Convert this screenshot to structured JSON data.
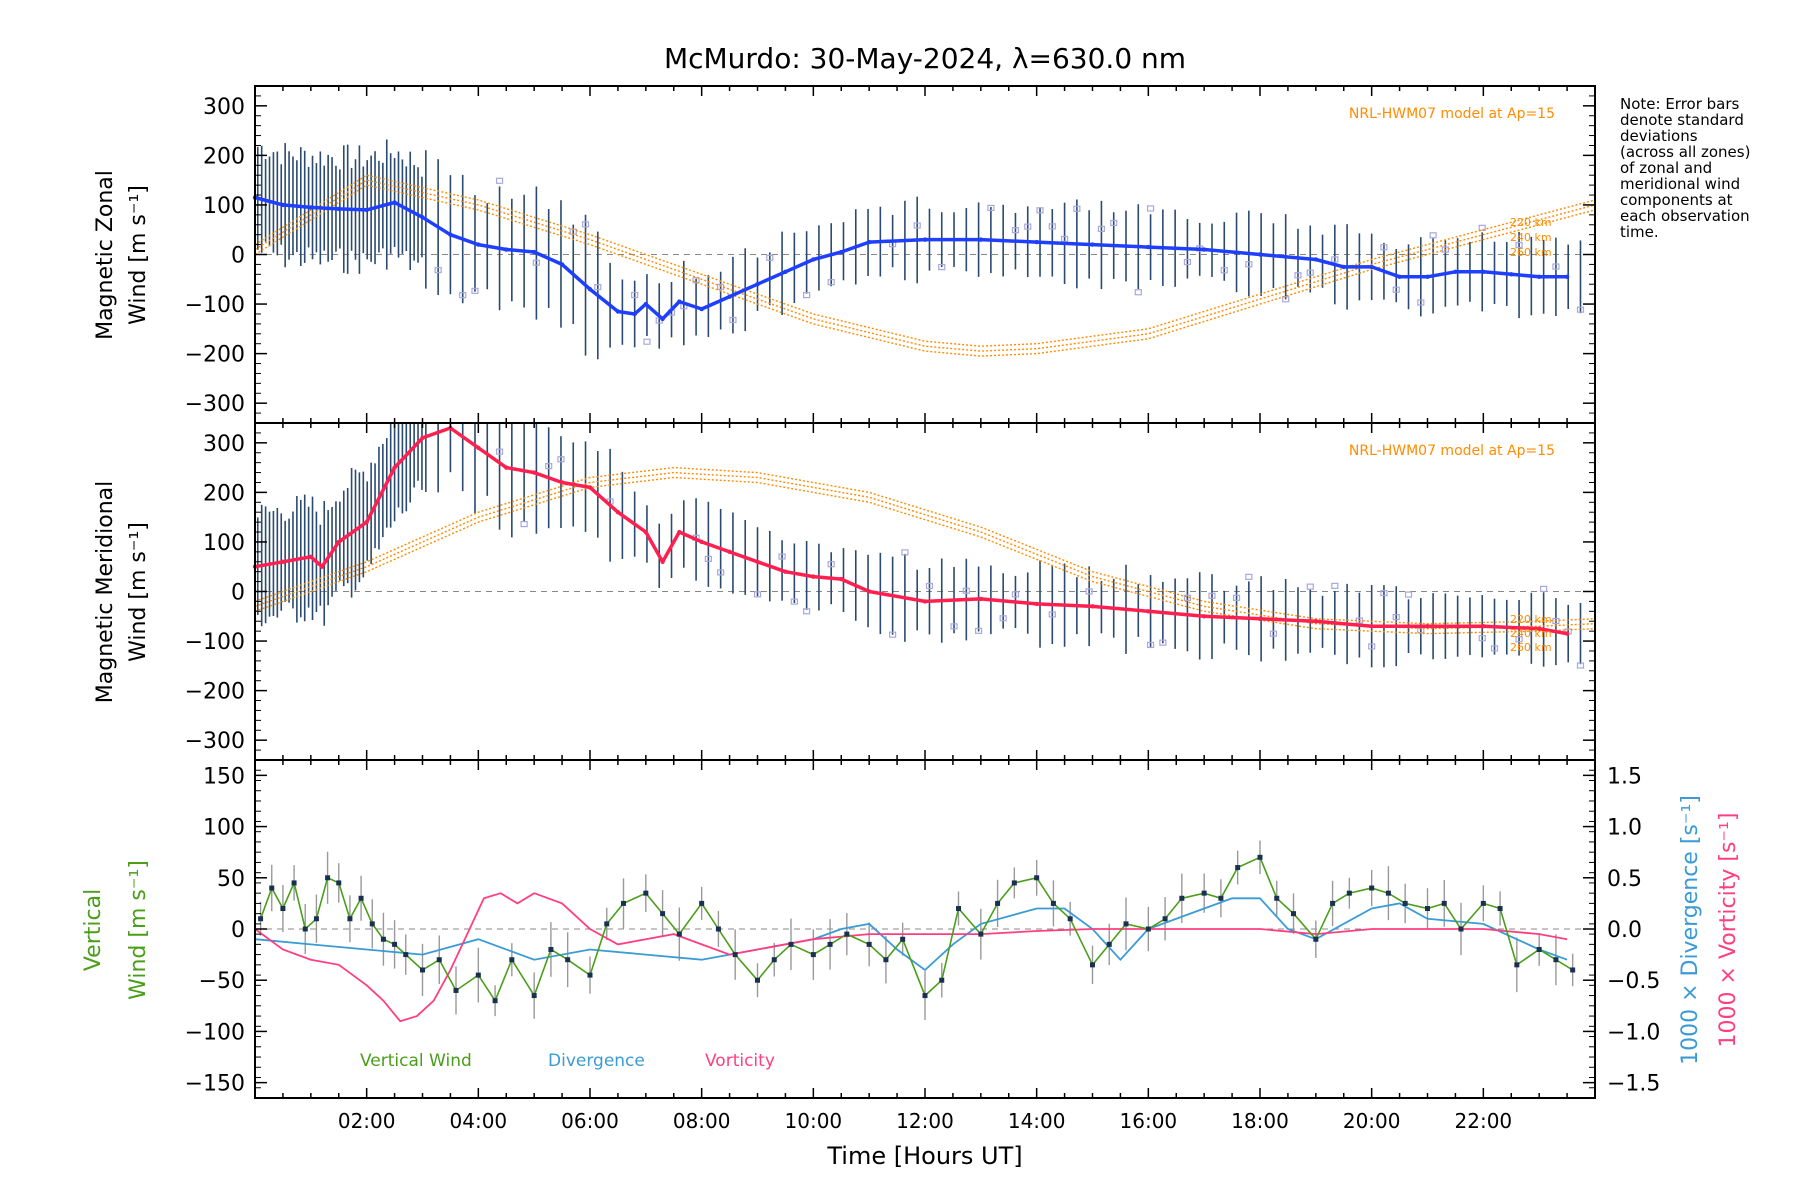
{
  "title": "McMurdo: 30-May-2024, λ=630.0 nm",
  "note_lines": [
    "Note: Error bars",
    "denote standard",
    "deviations",
    "(across all zones)",
    "of zonal and",
    "meridional wind",
    "components at",
    "each observation",
    "time."
  ],
  "xlabel": "Time [Hours UT]",
  "x_ticks": [
    "02:00",
    "04:00",
    "06:00",
    "08:00",
    "10:00",
    "12:00",
    "14:00",
    "16:00",
    "18:00",
    "20:00",
    "22:00"
  ],
  "colors": {
    "zonal": "#1f3fff",
    "meridional": "#ff2050",
    "model": "#ff8c00",
    "vertical": "#4a9e1a",
    "divergence": "#3a9bd5",
    "vorticity": "#ff3f80",
    "errorbar": "#2a4a70",
    "zone_marker": "#a8a8e0"
  },
  "chart_data": [
    {
      "type": "line",
      "panel": "zonal",
      "ylabel_line1": "Magnetic Zonal",
      "ylabel_line2": "Wind [m s⁻¹]",
      "model_label": "NRL-HWM07 model at Ap=15",
      "model_heights": [
        "220 km",
        "240 km",
        "260 km"
      ],
      "y_ticks": [
        "300",
        "200",
        "100",
        "0",
        "−100",
        "−200",
        "−300"
      ],
      "ylim": [
        -340,
        340
      ],
      "xlim": [
        0,
        24
      ],
      "series": [
        {
          "name": "zonal",
          "x": [
            0,
            0.5,
            1,
            1.5,
            2,
            2.5,
            3,
            3.5,
            4,
            4.5,
            5,
            5.5,
            6,
            6.5,
            6.8,
            7,
            7.3,
            7.6,
            8,
            8.5,
            9,
            9.5,
            10,
            10.5,
            11,
            12,
            13,
            14,
            15,
            16,
            17,
            18,
            19,
            19.5,
            20,
            20.5,
            21,
            21.5,
            22,
            22.5,
            23,
            23.5
          ],
          "values": [
            115,
            100,
            95,
            92,
            90,
            105,
            75,
            40,
            20,
            10,
            5,
            -20,
            -70,
            -115,
            -120,
            -100,
            -130,
            -95,
            -110,
            -85,
            -60,
            -35,
            -10,
            5,
            25,
            30,
            30,
            25,
            20,
            15,
            10,
            0,
            -10,
            -25,
            -25,
            -45,
            -45,
            -35,
            -35,
            -40,
            -45,
            -45
          ]
        },
        {
          "name": "model",
          "x": [
            0,
            2,
            4,
            6,
            8,
            10,
            12,
            13,
            14,
            16,
            18,
            20,
            22,
            24
          ],
          "values": [
            10,
            150,
            100,
            30,
            -50,
            -130,
            -185,
            -195,
            -190,
            -160,
            -90,
            -20,
            40,
            100
          ]
        }
      ]
    },
    {
      "type": "line",
      "panel": "meridional",
      "ylabel_line1": "Magnetic Meridional",
      "ylabel_line2": "Wind [m s⁻¹]",
      "model_label": "NRL-HWM07 model at Ap=15",
      "model_heights": [
        "220 km",
        "240 km",
        "260 km"
      ],
      "y_ticks": [
        "300",
        "200",
        "100",
        "0",
        "−100",
        "−200",
        "−300"
      ],
      "ylim": [
        -340,
        340
      ],
      "xlim": [
        0,
        24
      ],
      "series": [
        {
          "name": "meridional",
          "x": [
            0,
            0.5,
            1,
            1.2,
            1.5,
            2,
            2.5,
            3,
            3.5,
            4,
            4.5,
            5,
            5.5,
            6,
            6.5,
            7,
            7.3,
            7.6,
            8,
            8.5,
            9,
            9.5,
            10,
            10.5,
            11,
            12,
            13,
            14,
            15,
            16,
            17,
            18,
            19,
            20,
            21,
            22,
            23,
            23.5
          ],
          "values": [
            50,
            60,
            70,
            50,
            100,
            140,
            250,
            310,
            330,
            290,
            250,
            240,
            220,
            210,
            160,
            120,
            60,
            120,
            100,
            80,
            60,
            40,
            30,
            25,
            0,
            -20,
            -15,
            -25,
            -30,
            -40,
            -50,
            -55,
            -60,
            -70,
            -70,
            -70,
            -75,
            -85
          ]
        },
        {
          "name": "model",
          "x": [
            0,
            2,
            4,
            6,
            7.5,
            9,
            11,
            13,
            15,
            17,
            19,
            21,
            23,
            24
          ],
          "values": [
            -30,
            50,
            150,
            220,
            240,
            230,
            190,
            120,
            30,
            -30,
            -65,
            -75,
            -70,
            -65
          ]
        }
      ]
    },
    {
      "type": "line",
      "panel": "vertical",
      "ylabel_left_line1": "Vertical",
      "ylabel_left_line2": "Wind [m s⁻¹]",
      "ylabel_right_div": "1000 × Divergence [s⁻¹]",
      "ylabel_right_vor": "1000 × Vorticity [s⁻¹]",
      "y_ticks_left": [
        "150",
        "100",
        "50",
        "0",
        "−50",
        "−100",
        "−150"
      ],
      "y_ticks_right": [
        "1.5",
        "1.0",
        "0.5",
        "0.0",
        "−0.5",
        "−1.0",
        "−1.5"
      ],
      "ylim": [
        -165,
        165
      ],
      "xlim": [
        0,
        24
      ],
      "legend": [
        "Vertical Wind",
        "Divergence",
        "Vorticity"
      ],
      "series": [
        {
          "name": "Vertical Wind",
          "x": [
            0.1,
            0.3,
            0.5,
            0.7,
            0.9,
            1.1,
            1.3,
            1.5,
            1.7,
            1.9,
            2.1,
            2.3,
            2.5,
            2.7,
            3,
            3.3,
            3.6,
            4,
            4.3,
            4.6,
            5,
            5.3,
            5.6,
            6,
            6.3,
            6.6,
            7,
            7.3,
            7.6,
            8,
            8.3,
            8.6,
            9,
            9.3,
            9.6,
            10,
            10.3,
            10.6,
            11,
            11.3,
            11.6,
            12,
            12.3,
            12.6,
            13,
            13.3,
            13.6,
            14,
            14.3,
            14.6,
            15,
            15.3,
            15.6,
            16,
            16.3,
            16.6,
            17,
            17.3,
            17.6,
            18,
            18.3,
            18.6,
            19,
            19.3,
            19.6,
            20,
            20.3,
            20.6,
            21,
            21.3,
            21.6,
            22,
            22.3,
            22.6,
            23,
            23.3,
            23.6
          ],
          "values": [
            10,
            40,
            20,
            45,
            0,
            10,
            50,
            45,
            10,
            30,
            5,
            -10,
            -15,
            -25,
            -40,
            -30,
            -60,
            -45,
            -70,
            -30,
            -65,
            -20,
            -30,
            -45,
            5,
            25,
            35,
            15,
            -5,
            25,
            0,
            -25,
            -50,
            -30,
            -15,
            -25,
            -15,
            -5,
            -15,
            -30,
            -10,
            -65,
            -50,
            20,
            -5,
            25,
            45,
            50,
            25,
            10,
            -35,
            -15,
            5,
            0,
            10,
            30,
            35,
            30,
            60,
            70,
            30,
            15,
            -10,
            25,
            35,
            40,
            35,
            25,
            20,
            25,
            0,
            25,
            20,
            -35,
            -20,
            -30,
            -40
          ]
        },
        {
          "name": "Divergence",
          "x": [
            0,
            1,
            2,
            3,
            4,
            5,
            6,
            7,
            8,
            9,
            10,
            10.5,
            11,
            11.5,
            12,
            12.5,
            13,
            14,
            14.5,
            15,
            15.5,
            16,
            17,
            17.5,
            18,
            18.5,
            19,
            20,
            20.5,
            21,
            22,
            23,
            23.5
          ],
          "values": [
            -0.1,
            -0.15,
            -0.2,
            -0.25,
            -0.1,
            -0.3,
            -0.2,
            -0.25,
            -0.3,
            -0.2,
            -0.1,
            0.0,
            0.05,
            -0.2,
            -0.4,
            -0.15,
            0.05,
            0.2,
            0.2,
            0.0,
            -0.3,
            0.0,
            0.2,
            0.3,
            0.3,
            0.0,
            -0.1,
            0.2,
            0.25,
            0.1,
            0.05,
            -0.2,
            -0.3
          ]
        },
        {
          "name": "Vorticity",
          "x": [
            0,
            0.5,
            1,
            1.5,
            2,
            2.3,
            2.6,
            2.9,
            3.2,
            3.5,
            3.8,
            4.1,
            4.4,
            4.7,
            5,
            5.5,
            6,
            6.5,
            7,
            7.5,
            8,
            8.5,
            9,
            10,
            11,
            12,
            13,
            14,
            15,
            16,
            17,
            18,
            19,
            20,
            21,
            22,
            23,
            23.5
          ],
          "values": [
            0.0,
            -0.2,
            -0.3,
            -0.35,
            -0.55,
            -0.7,
            -0.9,
            -0.85,
            -0.7,
            -0.4,
            -0.05,
            0.3,
            0.35,
            0.25,
            0.35,
            0.25,
            0.0,
            -0.15,
            -0.1,
            -0.05,
            -0.15,
            -0.25,
            -0.2,
            -0.1,
            -0.05,
            -0.05,
            -0.05,
            -0.02,
            0.0,
            0.0,
            0.0,
            0.0,
            -0.05,
            0.0,
            0.0,
            0.0,
            -0.05,
            -0.1
          ]
        }
      ]
    }
  ]
}
